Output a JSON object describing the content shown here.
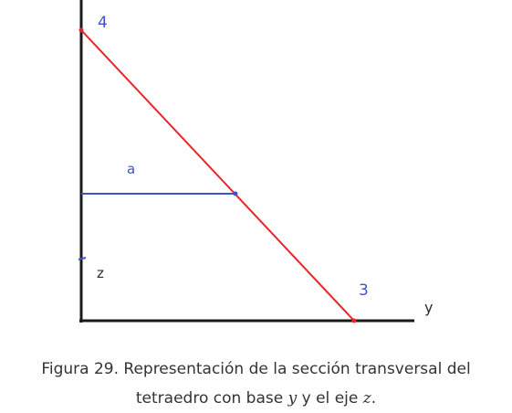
{
  "diagram": {
    "labels": {
      "vertex_top": "4",
      "vertex_right": "3",
      "segment": "a",
      "vertical_axis": "z",
      "horizontal_axis": "y"
    },
    "colors": {
      "axes": "#1a1a1a",
      "hypotenuse": "#e8262a",
      "segment": "#3f54c6",
      "point_labels": "#3f54c6"
    }
  },
  "caption": {
    "line1": "Figura 29. Representación de la sección transversal del",
    "line2_prefix": "tetraedro con base ",
    "var_base": "y",
    "line2_middle": " y el eje ",
    "var_axis": "z",
    "line2_suffix": "."
  }
}
